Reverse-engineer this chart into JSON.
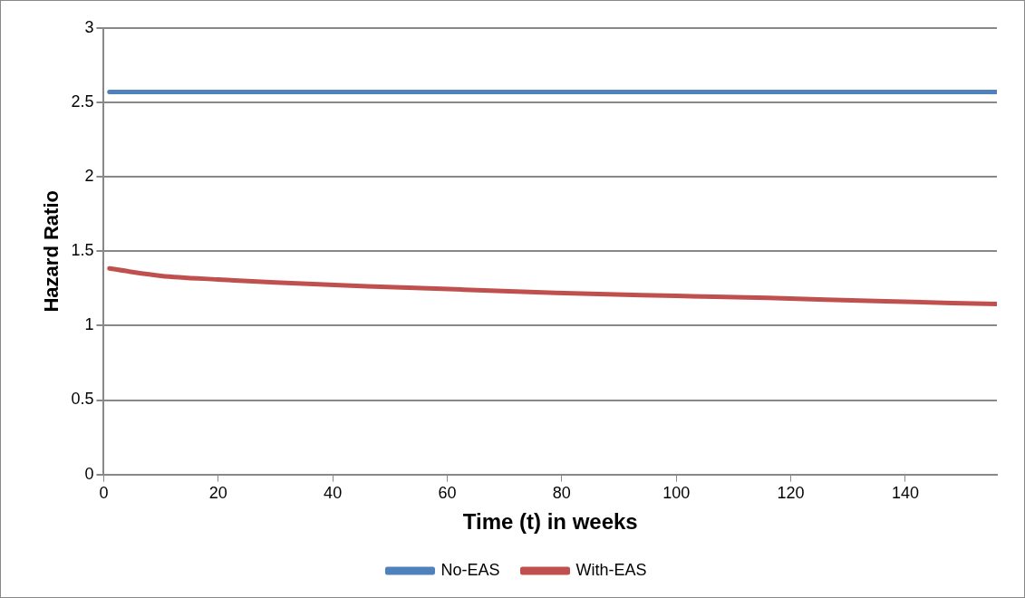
{
  "chart_data": {
    "type": "line",
    "xlabel": "Time (t) in weeks",
    "ylabel": "Hazard Ratio",
    "xlim": [
      0,
      156
    ],
    "xticks": [
      0,
      20,
      40,
      60,
      80,
      100,
      120,
      140
    ],
    "ylim": [
      0,
      3
    ],
    "yticks": [
      0,
      0.5,
      1,
      1.5,
      2,
      2.5,
      3
    ],
    "grid": "y",
    "legend": "bottom",
    "marker": "none",
    "line_style": "solid",
    "series": [
      {
        "name": "No-EAS",
        "color": "#4f81bd",
        "x": [
          1,
          156
        ],
        "values": [
          2.57,
          2.57
        ]
      },
      {
        "name": "With-EAS",
        "color": "#c0504d",
        "x": [
          1,
          5,
          10,
          20,
          30,
          46,
          63,
          79,
          100,
          116,
          135,
          156
        ],
        "values": [
          1.385,
          1.36,
          1.335,
          1.31,
          1.29,
          1.265,
          1.242,
          1.22,
          1.2,
          1.186,
          1.165,
          1.145
        ]
      }
    ]
  }
}
